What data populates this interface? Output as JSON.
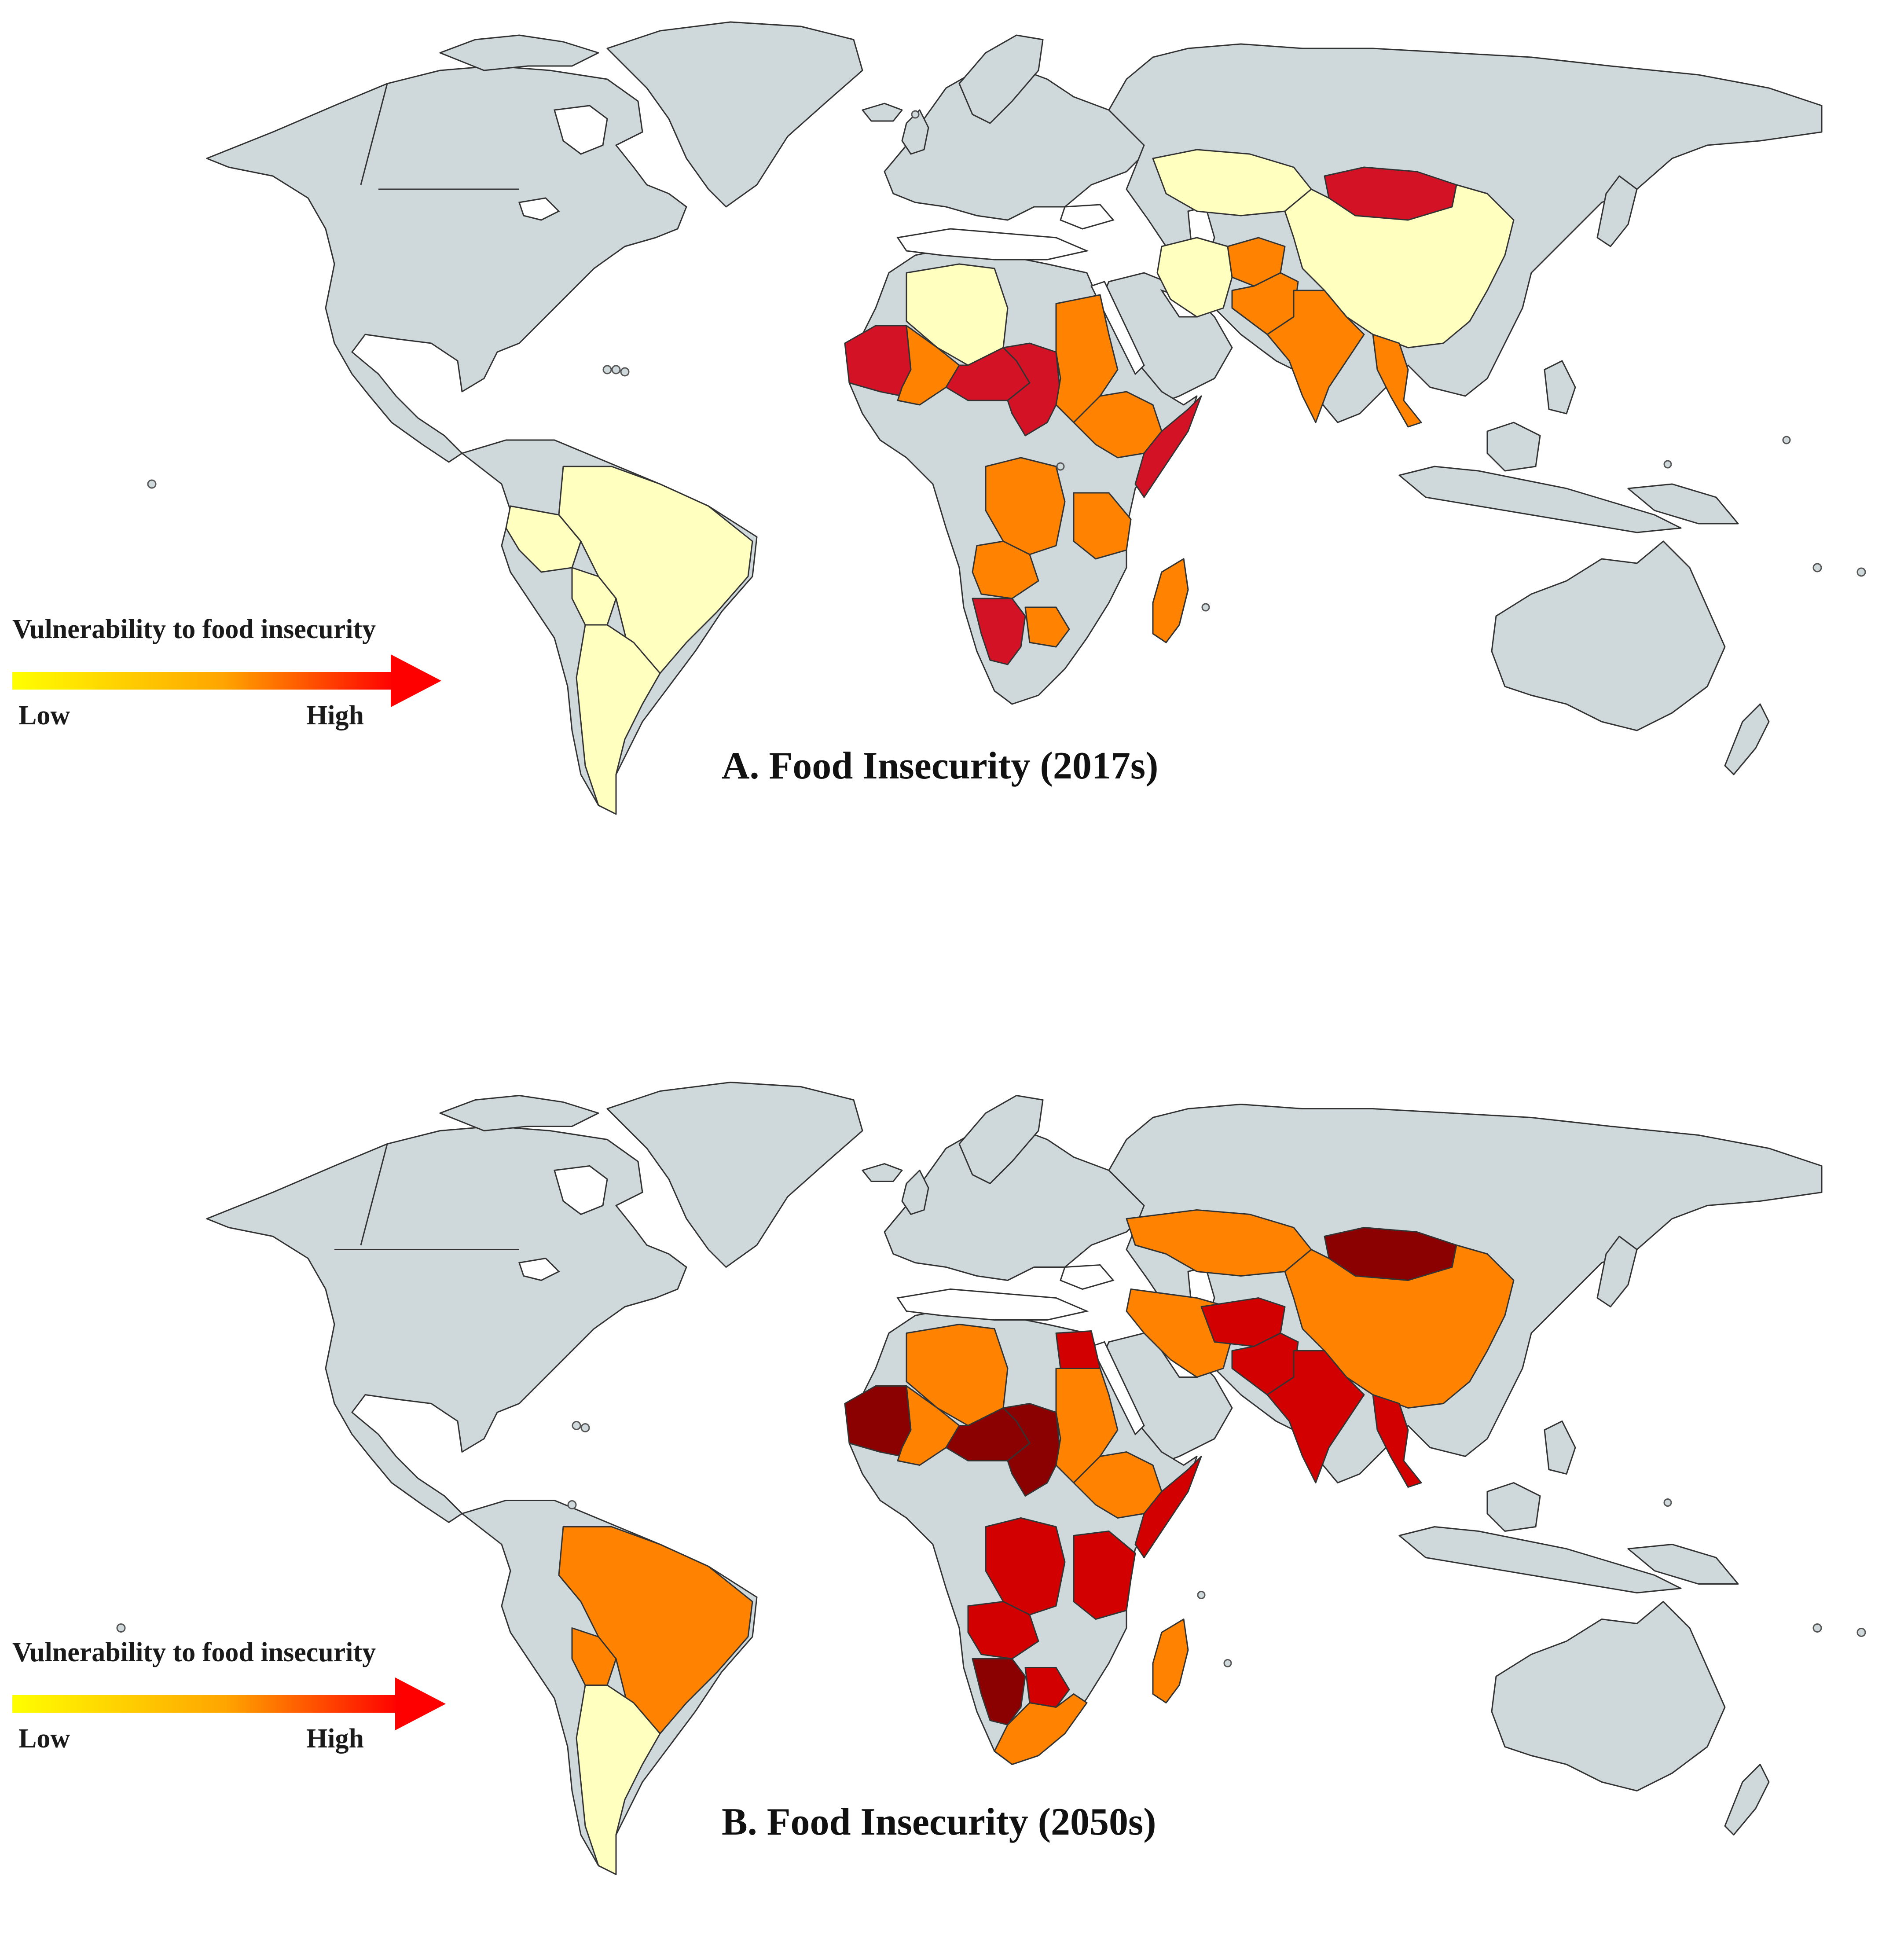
{
  "colors": {
    "land": "#cfd9dc",
    "low": "#ffffc0",
    "moderate": "#ff8300",
    "high": "#d31226",
    "very_high": "#d20000",
    "extreme": "#8b0000"
  },
  "panels": [
    {
      "title": "A.  Food Insecurity (2017s)",
      "legend": {
        "title": "Vulnerability to food insecurity",
        "low": "Low",
        "high": "High"
      },
      "regions": [
        {
          "name": "Brazil",
          "level": "low"
        },
        {
          "name": "Argentina",
          "level": "low"
        },
        {
          "name": "Bolivia",
          "level": "low"
        },
        {
          "name": "Peru",
          "level": "low"
        },
        {
          "name": "Algeria",
          "level": "low"
        },
        {
          "name": "China",
          "level": "low"
        },
        {
          "name": "Kazakhstan",
          "level": "low"
        },
        {
          "name": "Iran",
          "level": "low"
        },
        {
          "name": "Mongolia",
          "level": "high"
        },
        {
          "name": "Mauritania",
          "level": "high"
        },
        {
          "name": "Niger",
          "level": "high"
        },
        {
          "name": "Chad",
          "level": "high"
        },
        {
          "name": "Somalia",
          "level": "high"
        },
        {
          "name": "Namibia",
          "level": "high"
        },
        {
          "name": "Mali",
          "level": "moderate"
        },
        {
          "name": "Sudan",
          "level": "moderate"
        },
        {
          "name": "Ethiopia",
          "level": "moderate"
        },
        {
          "name": "DR Congo",
          "level": "moderate"
        },
        {
          "name": "Angola",
          "level": "moderate"
        },
        {
          "name": "Tanzania",
          "level": "moderate"
        },
        {
          "name": "Madagascar",
          "level": "moderate"
        },
        {
          "name": "India",
          "level": "moderate"
        },
        {
          "name": "Pakistan",
          "level": "moderate"
        },
        {
          "name": "Afghanistan",
          "level": "moderate"
        },
        {
          "name": "Myanmar",
          "level": "moderate"
        },
        {
          "name": "Botswana",
          "level": "moderate"
        }
      ]
    },
    {
      "title": "B. Food Insecurity (2050s)",
      "legend": {
        "title": "Vulnerability to food insecurity",
        "low": "Low",
        "high": "High"
      },
      "regions": [
        {
          "name": "Brazil",
          "level": "moderate"
        },
        {
          "name": "Bolivia",
          "level": "moderate"
        },
        {
          "name": "Argentina",
          "level": "low"
        },
        {
          "name": "Algeria",
          "level": "moderate"
        },
        {
          "name": "Mali",
          "level": "moderate"
        },
        {
          "name": "Mauritania",
          "level": "extreme"
        },
        {
          "name": "Niger",
          "level": "extreme"
        },
        {
          "name": "Chad",
          "level": "extreme"
        },
        {
          "name": "Egypt",
          "level": "very_high"
        },
        {
          "name": "Sudan",
          "level": "moderate"
        },
        {
          "name": "Ethiopia",
          "level": "moderate"
        },
        {
          "name": "Somalia",
          "level": "very_high"
        },
        {
          "name": "DR Congo",
          "level": "very_high"
        },
        {
          "name": "Angola",
          "level": "very_high"
        },
        {
          "name": "Tanzania",
          "level": "very_high"
        },
        {
          "name": "Namibia",
          "level": "extreme"
        },
        {
          "name": "Botswana",
          "level": "very_high"
        },
        {
          "name": "South Africa",
          "level": "moderate"
        },
        {
          "name": "Madagascar",
          "level": "moderate"
        },
        {
          "name": "Kazakhstan",
          "level": "moderate"
        },
        {
          "name": "China",
          "level": "moderate"
        },
        {
          "name": "Mongolia",
          "level": "extreme"
        },
        {
          "name": "Iran",
          "level": "moderate"
        },
        {
          "name": "Afghanistan",
          "level": "very_high"
        },
        {
          "name": "Pakistan",
          "level": "very_high"
        },
        {
          "name": "India",
          "level": "very_high"
        },
        {
          "name": "Myanmar",
          "level": "very_high"
        }
      ]
    }
  ]
}
